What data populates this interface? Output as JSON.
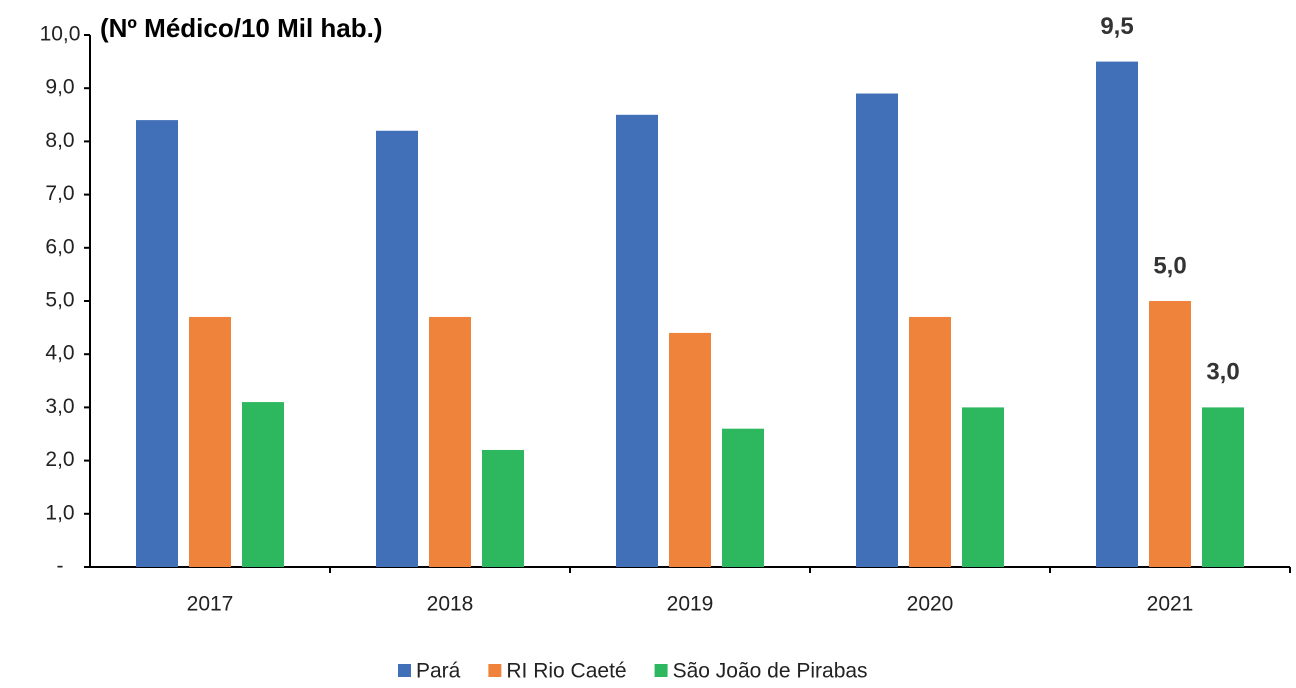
{
  "chart_data": {
    "type": "bar",
    "title": "(Nº Médico/10 Mil hab.)",
    "categories": [
      "2017",
      "2018",
      "2019",
      "2020",
      "2021"
    ],
    "series": [
      {
        "name": "Pará",
        "color": "#4170b8",
        "values": [
          8.4,
          8.2,
          8.5,
          8.9,
          9.5
        ],
        "value_labels": [
          null,
          null,
          null,
          null,
          "9,5"
        ]
      },
      {
        "name": "RI Rio Caeté",
        "color": "#f0833c",
        "values": [
          4.7,
          4.7,
          4.4,
          4.7,
          5.0
        ],
        "value_labels": [
          null,
          null,
          null,
          null,
          "5,0"
        ]
      },
      {
        "name": "São João de Pirabas",
        "color": "#2db75e",
        "values": [
          3.1,
          2.2,
          2.6,
          3.0,
          3.0
        ],
        "value_labels": [
          null,
          null,
          null,
          null,
          "3,0"
        ]
      }
    ],
    "ylim": [
      0,
      10
    ],
    "yticks": [
      {
        "value": 0,
        "label": "-"
      },
      {
        "value": 1,
        "label": "1,0"
      },
      {
        "value": 2,
        "label": "2,0"
      },
      {
        "value": 3,
        "label": "3,0"
      },
      {
        "value": 4,
        "label": "4,0"
      },
      {
        "value": 5,
        "label": "5,0"
      },
      {
        "value": 6,
        "label": "6,0"
      },
      {
        "value": 7,
        "label": "7,0"
      },
      {
        "value": 8,
        "label": "8,0"
      },
      {
        "value": 9,
        "label": "9,0"
      },
      {
        "value": 10,
        "label": "10,0"
      }
    ],
    "grid": false
  }
}
